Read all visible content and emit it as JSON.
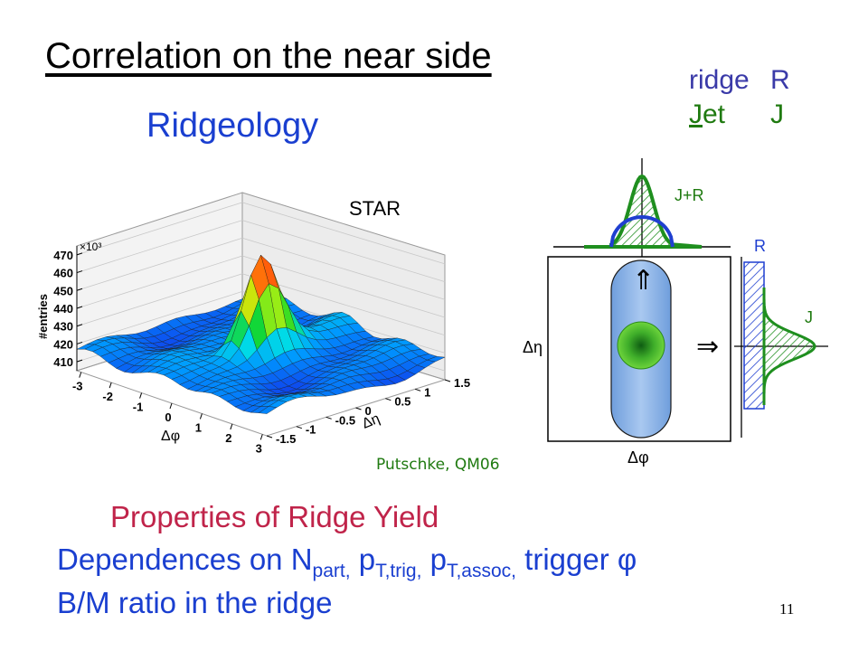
{
  "slide": {
    "title": "Correlation on the near side",
    "subtitle": "Ridgeology",
    "page_number": "11"
  },
  "legend": {
    "ridge_name": "ridge",
    "ridge_symbol": "R",
    "jet_name_first": "J",
    "jet_name_rest": "et",
    "jet_symbol": "J"
  },
  "plot": {
    "experiment": "STAR",
    "credit": "Putschke, QM06",
    "z_axis_title": "#entries",
    "z_multiplier": "×10³",
    "z_ticks": [
      "410",
      "420",
      "430",
      "440",
      "450",
      "460",
      "470"
    ],
    "phi_ticks": [
      "-3",
      "-2",
      "-1",
      "0",
      "1",
      "2",
      "3"
    ],
    "eta_ticks": [
      "-1.5",
      "-1",
      "-0.5",
      "0",
      "0.5",
      "1",
      "1.5"
    ],
    "phi_axis_label": "Δφ",
    "eta_axis_label": "Δη",
    "colors": {
      "low": "#1a2ee0",
      "mid": "#18d820",
      "high": "#ff2a10"
    }
  },
  "schematic": {
    "label_jr": "J+R",
    "label_r": "R",
    "label_j": "J",
    "label_deta": "Δη",
    "label_dphi": "Δφ",
    "arrow_up": "⇑",
    "arrow_right": "⇒",
    "colors": {
      "jet": "#1f8f1f",
      "ridge_outline": "#1f3fd0",
      "ridge_fill": "#8fb6e8"
    }
  },
  "properties": {
    "heading": "Properties of Ridge Yield",
    "dep_prefix": "Dependences on N",
    "dep_sub_part": "part,",
    "dep_mid1": " p",
    "dep_sub_trig": "T,trig,",
    "dep_mid2": " p",
    "dep_sub_assoc": "T,assoc,",
    "dep_suffix": " trigger φ",
    "bm_line": "B/M ratio in the ridge"
  }
}
